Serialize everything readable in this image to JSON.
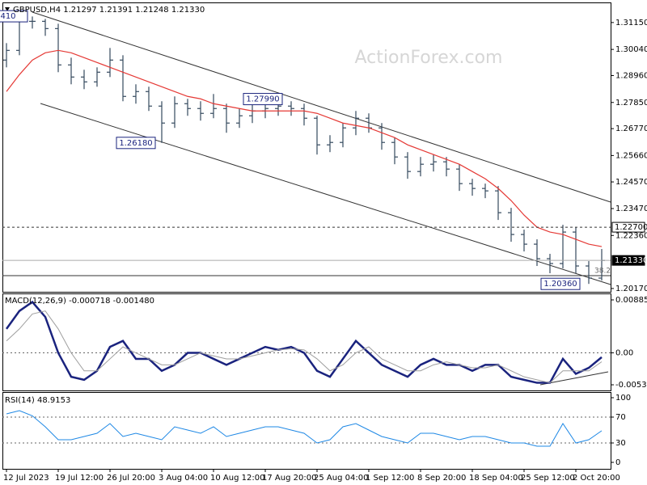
{
  "chart_data": [
    {
      "type": "candlestick",
      "title": "GBPUSD,H4  1.21297 1.21391 1.21248 1.21330",
      "watermark": "ActionForex.com",
      "categories": [
        "12 Jul 2023",
        null,
        null,
        null,
        "19 Jul 12:00",
        null,
        null,
        null,
        "26 Jul 20:00",
        null,
        null,
        null,
        "3 Aug 04:00",
        null,
        null,
        null,
        "10 Aug 12:00",
        null,
        null,
        null,
        "17 Aug 20:00",
        null,
        null,
        null,
        "25 Aug 04:00",
        null,
        null,
        null,
        "1 Sep 12:00",
        null,
        null,
        null,
        "8 Sep 20:00",
        null,
        null,
        null,
        "18 Sep 04:00",
        null,
        null,
        null,
        "25 Sep 12:00",
        null,
        null,
        null,
        "2 Oct 20:00",
        null,
        null
      ],
      "open": [
        1.296,
        1.3,
        1.312,
        1.312,
        1.309,
        1.294,
        1.289,
        1.287,
        1.291,
        1.296,
        1.281,
        1.283,
        1.277,
        1.27,
        1.278,
        1.276,
        1.274,
        1.276,
        1.27,
        1.273,
        1.275,
        1.276,
        1.277,
        1.276,
        1.272,
        1.261,
        1.262,
        1.268,
        1.272,
        1.268,
        1.262,
        1.256,
        1.25,
        1.253,
        1.254,
        1.251,
        1.245,
        1.243,
        1.242,
        1.233,
        1.224,
        1.22,
        1.214,
        1.212,
        1.225,
        1.211,
        1.206
      ],
      "high": [
        1.303,
        1.315,
        1.314,
        1.313,
        1.311,
        1.297,
        1.292,
        1.293,
        1.301,
        1.298,
        1.286,
        1.285,
        1.279,
        1.281,
        1.28,
        1.279,
        1.282,
        1.278,
        1.276,
        1.278,
        1.28,
        1.28,
        1.279,
        1.278,
        1.273,
        1.265,
        1.27,
        1.275,
        1.274,
        1.27,
        1.264,
        1.258,
        1.256,
        1.257,
        1.256,
        1.253,
        1.247,
        1.245,
        1.244,
        1.235,
        1.226,
        1.222,
        1.216,
        1.228,
        1.227,
        1.213,
        1.218
      ],
      "low": [
        1.293,
        1.298,
        1.309,
        1.306,
        1.291,
        1.286,
        1.284,
        1.285,
        1.289,
        1.279,
        1.278,
        1.275,
        1.2618,
        1.268,
        1.273,
        1.271,
        1.272,
        1.266,
        1.268,
        1.27,
        1.272,
        1.273,
        1.273,
        1.269,
        1.257,
        1.258,
        1.26,
        1.265,
        1.266,
        1.259,
        1.253,
        1.247,
        1.248,
        1.25,
        1.248,
        1.242,
        1.24,
        1.239,
        1.23,
        1.221,
        1.217,
        1.211,
        1.208,
        1.21,
        1.208,
        1.2036,
        1.205
      ],
      "close": [
        1.3,
        1.312,
        1.312,
        1.309,
        1.294,
        1.289,
        1.287,
        1.291,
        1.296,
        1.281,
        1.283,
        1.277,
        1.27,
        1.278,
        1.276,
        1.274,
        1.276,
        1.27,
        1.273,
        1.275,
        1.276,
        1.277,
        1.276,
        1.272,
        1.261,
        1.262,
        1.268,
        1.272,
        1.268,
        1.262,
        1.256,
        1.25,
        1.253,
        1.254,
        1.251,
        1.245,
        1.243,
        1.242,
        1.233,
        1.224,
        1.22,
        1.214,
        1.212,
        1.225,
        1.211,
        1.206,
        1.2133
      ],
      "color": "#34495e",
      "lines": [
        {
          "color": "#e53935",
          "values": [
            1.283,
            1.29,
            1.296,
            1.299,
            1.3,
            1.299,
            1.297,
            1.295,
            1.293,
            1.291,
            1.289,
            1.287,
            1.285,
            1.283,
            1.281,
            1.28,
            1.278,
            1.277,
            1.276,
            1.275,
            1.275,
            1.275,
            1.275,
            1.275,
            1.274,
            1.272,
            1.27,
            1.269,
            1.268,
            1.266,
            1.264,
            1.261,
            1.259,
            1.257,
            1.255,
            1.253,
            1.25,
            1.247,
            1.243,
            1.238,
            1.232,
            1.227,
            1.225,
            1.224,
            1.222,
            1.22,
            1.219
          ]
        }
      ],
      "ylim": [
        1.2,
        1.3198
      ],
      "yticks": [
        {
          "value": 1.3115,
          "label": "1.31150"
        },
        {
          "value": 1.3004,
          "label": "1.30040"
        },
        {
          "value": 1.2896,
          "label": "1.28960"
        },
        {
          "value": 1.2785,
          "label": "1.27850"
        },
        {
          "value": 1.2677,
          "label": "1.26770"
        },
        {
          "value": 1.2566,
          "label": "1.25660"
        },
        {
          "value": 1.2457,
          "label": "1.24570"
        },
        {
          "value": 1.2347,
          "label": "1.23470"
        },
        {
          "value": 1.2236,
          "label": "1.22360"
        },
        {
          "value": 1.2017,
          "label": "1.20170"
        }
      ],
      "levels": [
        {
          "value": 1.227,
          "label": "1.22700",
          "style": "dashed"
        },
        {
          "value": 1.2133,
          "label": "1.21330",
          "style": "current"
        }
      ],
      "annotations": [
        {
          "value": 1.2799,
          "label": "1.27990"
        },
        {
          "value": 1.2618,
          "label": "1.26180"
        },
        {
          "value": 1.2036,
          "label": "1.20360"
        },
        {
          "value": 1.3141,
          "label": "410"
        }
      ],
      "fib_label": 38.2
    },
    {
      "type": "line",
      "title": "MACD(12,26,9) -0.000718 -0.001480",
      "series": [
        {
          "color": "#1a237e",
          "width": 2.5,
          "values": [
            0.004,
            0.007,
            0.0085,
            0.006,
            0.0,
            -0.004,
            -0.0045,
            -0.003,
            0.001,
            0.002,
            -0.001,
            -0.001,
            -0.003,
            -0.002,
            0.0,
            0.0,
            -0.001,
            -0.002,
            -0.001,
            0.0,
            0.001,
            0.0005,
            0.001,
            0.0,
            -0.003,
            -0.004,
            -0.001,
            0.002,
            0.0,
            -0.002,
            -0.003,
            -0.004,
            -0.002,
            -0.001,
            -0.002,
            -0.002,
            -0.003,
            -0.002,
            -0.002,
            -0.004,
            -0.0045,
            -0.005,
            -0.005,
            -0.001,
            -0.0035,
            -0.0025,
            -0.000718
          ]
        },
        {
          "color": "#9e9e9e",
          "width": 1,
          "values": [
            0.002,
            0.004,
            0.0065,
            0.007,
            0.004,
            0.0,
            -0.003,
            -0.003,
            -0.001,
            0.001,
            0.0,
            -0.001,
            -0.002,
            -0.002,
            -0.001,
            0.0,
            -0.0005,
            -0.001,
            -0.001,
            -0.0005,
            0.0,
            0.0005,
            0.0007,
            0.0005,
            -0.001,
            -0.003,
            -0.002,
            0.0,
            0.001,
            -0.001,
            -0.002,
            -0.003,
            -0.003,
            -0.002,
            -0.0015,
            -0.002,
            -0.0025,
            -0.0025,
            -0.002,
            -0.003,
            -0.004,
            -0.0045,
            -0.005,
            -0.003,
            -0.003,
            -0.003,
            -0.00148
          ]
        }
      ],
      "ylim": [
        -0.00641,
        0.00993
      ],
      "yticks": [
        0.00885,
        {
          "value": 0,
          "label": "0.00"
        },
        -0.005334
      ],
      "zero_line": true
    },
    {
      "type": "line",
      "title": "RSI(14) 48.9153",
      "series": [
        {
          "color": "#1e88e5",
          "width": 1,
          "values": [
            75,
            80,
            72,
            55,
            35,
            35,
            40,
            45,
            60,
            40,
            45,
            40,
            35,
            55,
            50,
            45,
            55,
            40,
            45,
            50,
            55,
            55,
            50,
            45,
            30,
            35,
            55,
            60,
            50,
            40,
            35,
            30,
            45,
            45,
            40,
            35,
            40,
            40,
            35,
            30,
            30,
            25,
            25,
            60,
            30,
            35,
            48.9153
          ]
        }
      ],
      "ylim": [
        -10,
        107.5
      ],
      "yticks": [
        100,
        70,
        30,
        0
      ],
      "levels": [
        70,
        30
      ]
    }
  ]
}
